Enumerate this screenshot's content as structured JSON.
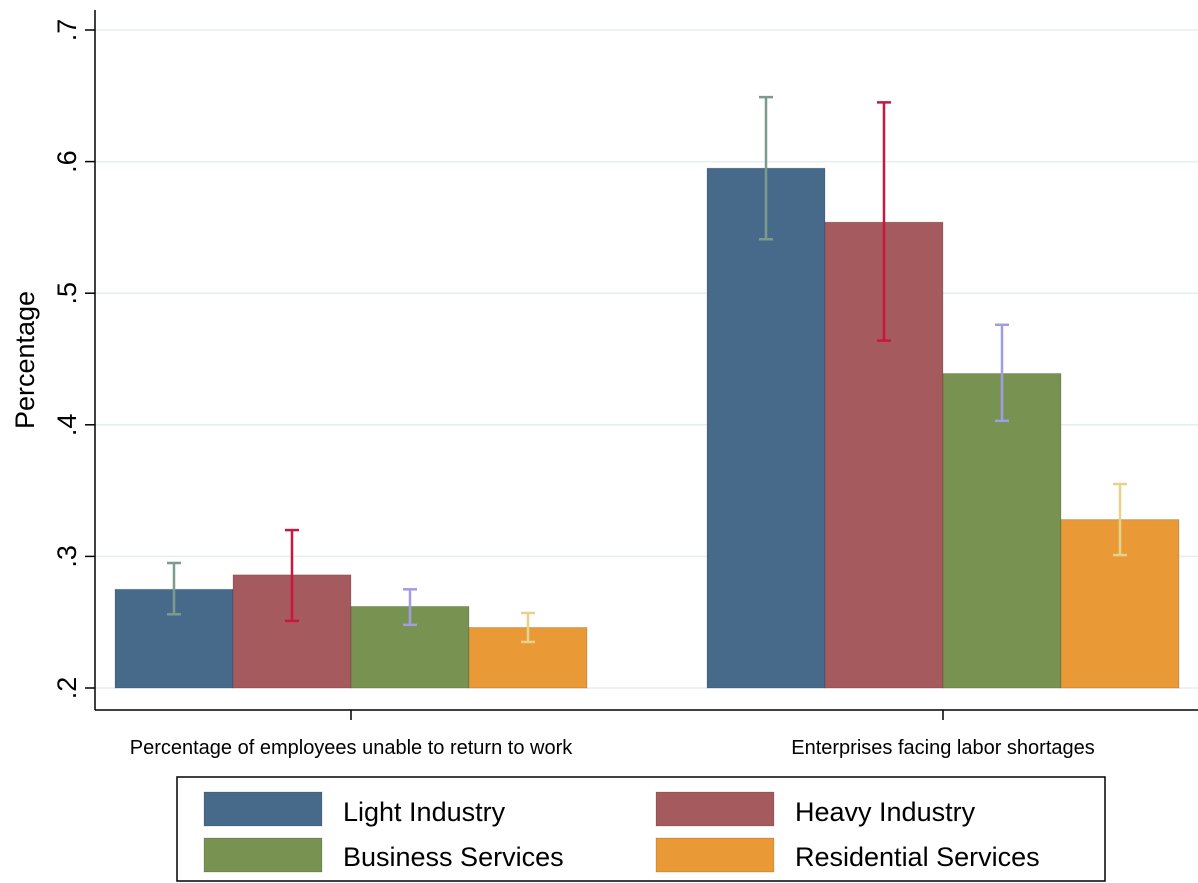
{
  "chart_data": {
    "type": "bar",
    "ylabel": "Percentage",
    "xlabel": "",
    "ylim": [
      0.2,
      0.7
    ],
    "yticks": [
      {
        "value": 0.2,
        "label": ".2"
      },
      {
        "value": 0.3,
        "label": ".3"
      },
      {
        "value": 0.4,
        "label": ".4"
      },
      {
        "value": 0.5,
        "label": ".5"
      },
      {
        "value": 0.6,
        "label": ".6"
      },
      {
        "value": 0.7,
        "label": ".7"
      }
    ],
    "grid": true,
    "categories": [
      "Percentage of employees unable to return to work",
      "Enterprises facing labor shortages"
    ],
    "series": [
      {
        "name": "Light Industry",
        "color": "#476a8a",
        "error_color": "#7d9b8c",
        "values": [
          0.275,
          0.595
        ],
        "ci_low": [
          0.256,
          0.541
        ],
        "ci_high": [
          0.295,
          0.649
        ]
      },
      {
        "name": "Heavy Industry",
        "color": "#a55a5d",
        "error_color": "#c8163f",
        "values": [
          0.286,
          0.554
        ],
        "ci_low": [
          0.251,
          0.464
        ],
        "ci_high": [
          0.32,
          0.645
        ]
      },
      {
        "name": "Business Services",
        "color": "#789252",
        "error_color": "#a09ee0",
        "values": [
          0.262,
          0.439
        ],
        "ci_low": [
          0.248,
          0.403
        ],
        "ci_high": [
          0.275,
          0.476
        ]
      },
      {
        "name": "Residential Services",
        "color": "#e99a36",
        "error_color": "#e6d28a",
        "values": [
          0.246,
          0.328
        ],
        "ci_low": [
          0.235,
          0.301
        ],
        "ci_high": [
          0.257,
          0.355
        ]
      }
    ],
    "legend_position": "bottom"
  }
}
